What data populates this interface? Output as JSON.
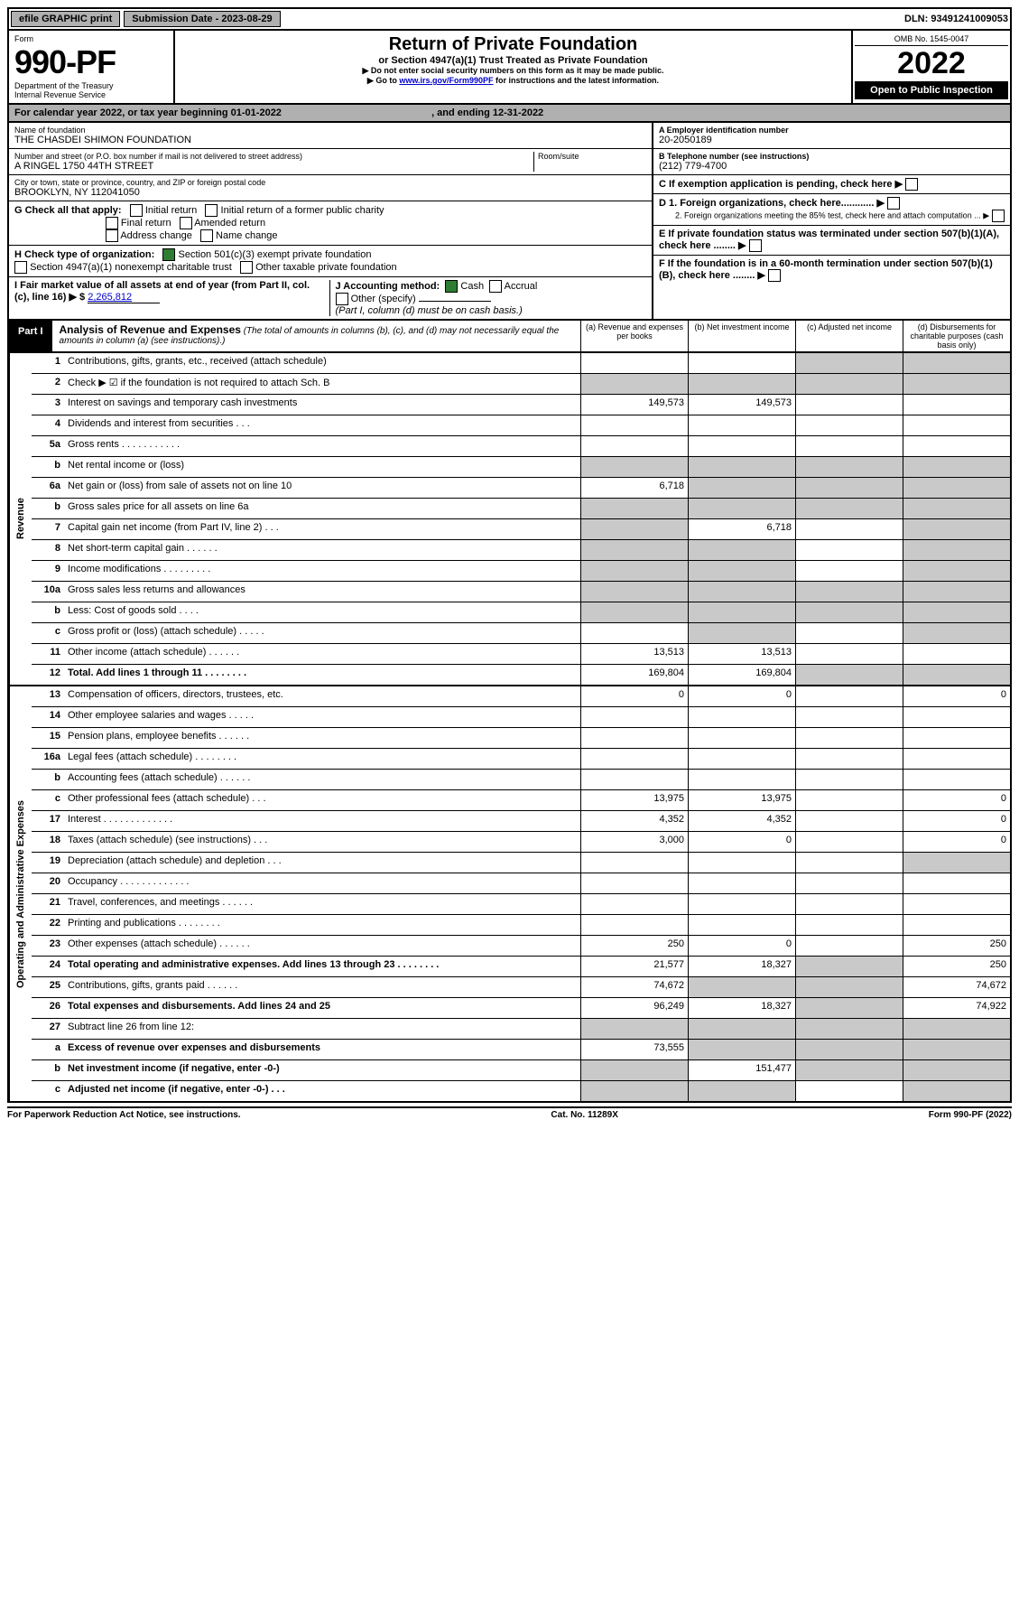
{
  "topbar": {
    "efile": "efile GRAPHIC print",
    "subdate_label": "Submission Date - ",
    "subdate": "2023-08-29",
    "dln_label": "DLN: ",
    "dln": "93491241009053"
  },
  "header": {
    "form_label": "Form",
    "form_num": "990-PF",
    "dept1": "Department of the Treasury",
    "dept2": "Internal Revenue Service",
    "title": "Return of Private Foundation",
    "subtitle": "or Section 4947(a)(1) Trust Treated as Private Foundation",
    "note1": "▶ Do not enter social security numbers on this form as it may be made public.",
    "note2_pre": "▶ Go to ",
    "note2_link": "www.irs.gov/Form990PF",
    "note2_post": " for instructions and the latest information.",
    "omb": "OMB No. 1545-0047",
    "year": "2022",
    "open": "Open to Public Inspection"
  },
  "calbar": {
    "pre": "For calendar year 2022, or tax year beginning ",
    "begin": "01-01-2022",
    "mid": " , and ending ",
    "end": "12-31-2022"
  },
  "left": {
    "name_label": "Name of foundation",
    "name": "THE CHASDEI SHIMON FOUNDATION",
    "street_label": "Number and street (or P.O. box number if mail is not delivered to street address)",
    "street": "A RINGEL 1750 44TH STREET",
    "room_label": "Room/suite",
    "city_label": "City or town, state or province, country, and ZIP or foreign postal code",
    "city": "BROOKLYN, NY  112041050",
    "g_label": "G Check all that apply:",
    "g": {
      "initial": "Initial return",
      "initial_former": "Initial return of a former public charity",
      "final": "Final return",
      "amended": "Amended return",
      "address": "Address change",
      "name_change": "Name change"
    },
    "h_label": "H Check type of organization:",
    "h1": "Section 501(c)(3) exempt private foundation",
    "h2": "Section 4947(a)(1) nonexempt charitable trust",
    "h3": "Other taxable private foundation",
    "i_label": "I Fair market value of all assets at end of year (from Part II, col. (c), line 16)  ▶ $ ",
    "i_value": "2,265,812",
    "j_label": "J Accounting method:",
    "j_cash": "Cash",
    "j_accrual": "Accrual",
    "j_other": "Other (specify)",
    "j_note": "(Part I, column (d) must be on cash basis.)"
  },
  "right": {
    "a_label": "A Employer identification number",
    "a": "20-2050189",
    "b_label": "B Telephone number (see instructions)",
    "b": "(212) 779-4700",
    "c": "C If exemption application is pending, check here ▶",
    "d1": "D 1. Foreign organizations, check here............ ▶",
    "d2": "2. Foreign organizations meeting the 85% test, check here and attach computation ... ▶",
    "e": "E If private foundation status was terminated under section 507(b)(1)(A), check here ........ ▶",
    "f": "F If the foundation is in a 60-month termination under section 507(b)(1)(B), check here ........ ▶"
  },
  "part1": {
    "tab": "Part I",
    "title": "Analysis of Revenue and Expenses",
    "title_note": " (The total of amounts in columns (b), (c), and (d) may not necessarily equal the amounts in column (a) (see instructions).)",
    "col_a": "(a)  Revenue and expenses per books",
    "col_b": "(b)  Net investment income",
    "col_c": "(c)  Adjusted net income",
    "col_d": "(d)  Disbursements for charitable purposes (cash basis only)"
  },
  "vlabels": {
    "rev": "Revenue",
    "exp": "Operating and Administrative Expenses"
  },
  "rows": {
    "1": {
      "n": "1",
      "d": "Contributions, gifts, grants, etc., received (attach schedule)"
    },
    "2": {
      "n": "2",
      "d": "Check ▶ ☑ if the foundation is not required to attach Sch. B"
    },
    "3": {
      "n": "3",
      "d": "Interest on savings and temporary cash investments",
      "a": "149,573",
      "b": "149,573"
    },
    "4": {
      "n": "4",
      "d": "Dividends and interest from securities   .  .  ."
    },
    "5a": {
      "n": "5a",
      "d": "Gross rents   .  .  .  .  .  .  .  .  .  .  ."
    },
    "5b": {
      "n": "b",
      "d": "Net rental income or (loss)"
    },
    "6a": {
      "n": "6a",
      "d": "Net gain or (loss) from sale of assets not on line 10",
      "a": "6,718"
    },
    "6b": {
      "n": "b",
      "d": "Gross sales price for all assets on line 6a"
    },
    "7": {
      "n": "7",
      "d": "Capital gain net income (from Part IV, line 2)   .  .  .",
      "b": "6,718"
    },
    "8": {
      "n": "8",
      "d": "Net short-term capital gain   .  .  .  .  .  ."
    },
    "9": {
      "n": "9",
      "d": "Income modifications   .  .  .  .  .  .  .  .  ."
    },
    "10a": {
      "n": "10a",
      "d": "Gross sales less returns and allowances"
    },
    "10b": {
      "n": "b",
      "d": "Less: Cost of goods sold   .  .  .  ."
    },
    "10c": {
      "n": "c",
      "d": "Gross profit or (loss) (attach schedule)   .  .  .  .  ."
    },
    "11": {
      "n": "11",
      "d": "Other income (attach schedule)   .  .  .  .  .  .",
      "a": "13,513",
      "b": "13,513"
    },
    "12": {
      "n": "12",
      "d": "Total. Add lines 1 through 11   .  .  .  .  .  .  .  .",
      "a": "169,804",
      "b": "169,804",
      "bold": true
    },
    "13": {
      "n": "13",
      "d": "Compensation of officers, directors, trustees, etc.",
      "a": "0",
      "b": "0",
      "dd": "0"
    },
    "14": {
      "n": "14",
      "d": "Other employee salaries and wages   .  .  .  .  ."
    },
    "15": {
      "n": "15",
      "d": "Pension plans, employee benefits   .  .  .  .  .  ."
    },
    "16a": {
      "n": "16a",
      "d": "Legal fees (attach schedule)   .  .  .  .  .  .  .  ."
    },
    "16b": {
      "n": "b",
      "d": "Accounting fees (attach schedule)   .  .  .  .  .  ."
    },
    "16c": {
      "n": "c",
      "d": "Other professional fees (attach schedule)   .  .  .",
      "a": "13,975",
      "b": "13,975",
      "dd": "0"
    },
    "17": {
      "n": "17",
      "d": "Interest   .  .  .  .  .  .  .  .  .  .  .  .  .",
      "a": "4,352",
      "b": "4,352",
      "dd": "0"
    },
    "18": {
      "n": "18",
      "d": "Taxes (attach schedule) (see instructions)   .  .  .",
      "a": "3,000",
      "b": "0",
      "dd": "0"
    },
    "19": {
      "n": "19",
      "d": "Depreciation (attach schedule) and depletion   .  .  ."
    },
    "20": {
      "n": "20",
      "d": "Occupancy   .  .  .  .  .  .  .  .  .  .  .  .  ."
    },
    "21": {
      "n": "21",
      "d": "Travel, conferences, and meetings   .  .  .  .  .  ."
    },
    "22": {
      "n": "22",
      "d": "Printing and publications   .  .  .  .  .  .  .  ."
    },
    "23": {
      "n": "23",
      "d": "Other expenses (attach schedule)   .  .  .  .  .  .",
      "a": "250",
      "b": "0",
      "dd": "250"
    },
    "24": {
      "n": "24",
      "d": "Total operating and administrative expenses. Add lines 13 through 23   .  .  .  .  .  .  .  .",
      "a": "21,577",
      "b": "18,327",
      "dd": "250",
      "bold": true
    },
    "25": {
      "n": "25",
      "d": "Contributions, gifts, grants paid   .  .  .  .  .  .",
      "a": "74,672",
      "dd": "74,672"
    },
    "26": {
      "n": "26",
      "d": "Total expenses and disbursements. Add lines 24 and 25",
      "a": "96,249",
      "b": "18,327",
      "dd": "74,922",
      "bold": true
    },
    "27": {
      "n": "27",
      "d": "Subtract line 26 from line 12:"
    },
    "27a": {
      "n": "a",
      "d": "Excess of revenue over expenses and disbursements",
      "a": "73,555",
      "bold": true
    },
    "27b": {
      "n": "b",
      "d": "Net investment income (if negative, enter -0-)",
      "b": "151,477",
      "bold": true
    },
    "27c": {
      "n": "c",
      "d": "Adjusted net income (if negative, enter -0-)   .  .  .",
      "bold": true
    }
  },
  "footer": {
    "left": "For Paperwork Reduction Act Notice, see instructions.",
    "mid": "Cat. No. 11289X",
    "right": "Form 990-PF (2022)"
  },
  "style": {
    "check_green": "#2e7d32",
    "shade": "#c9c9c9",
    "darkbar": "#000000",
    "link": "#0000cc"
  }
}
